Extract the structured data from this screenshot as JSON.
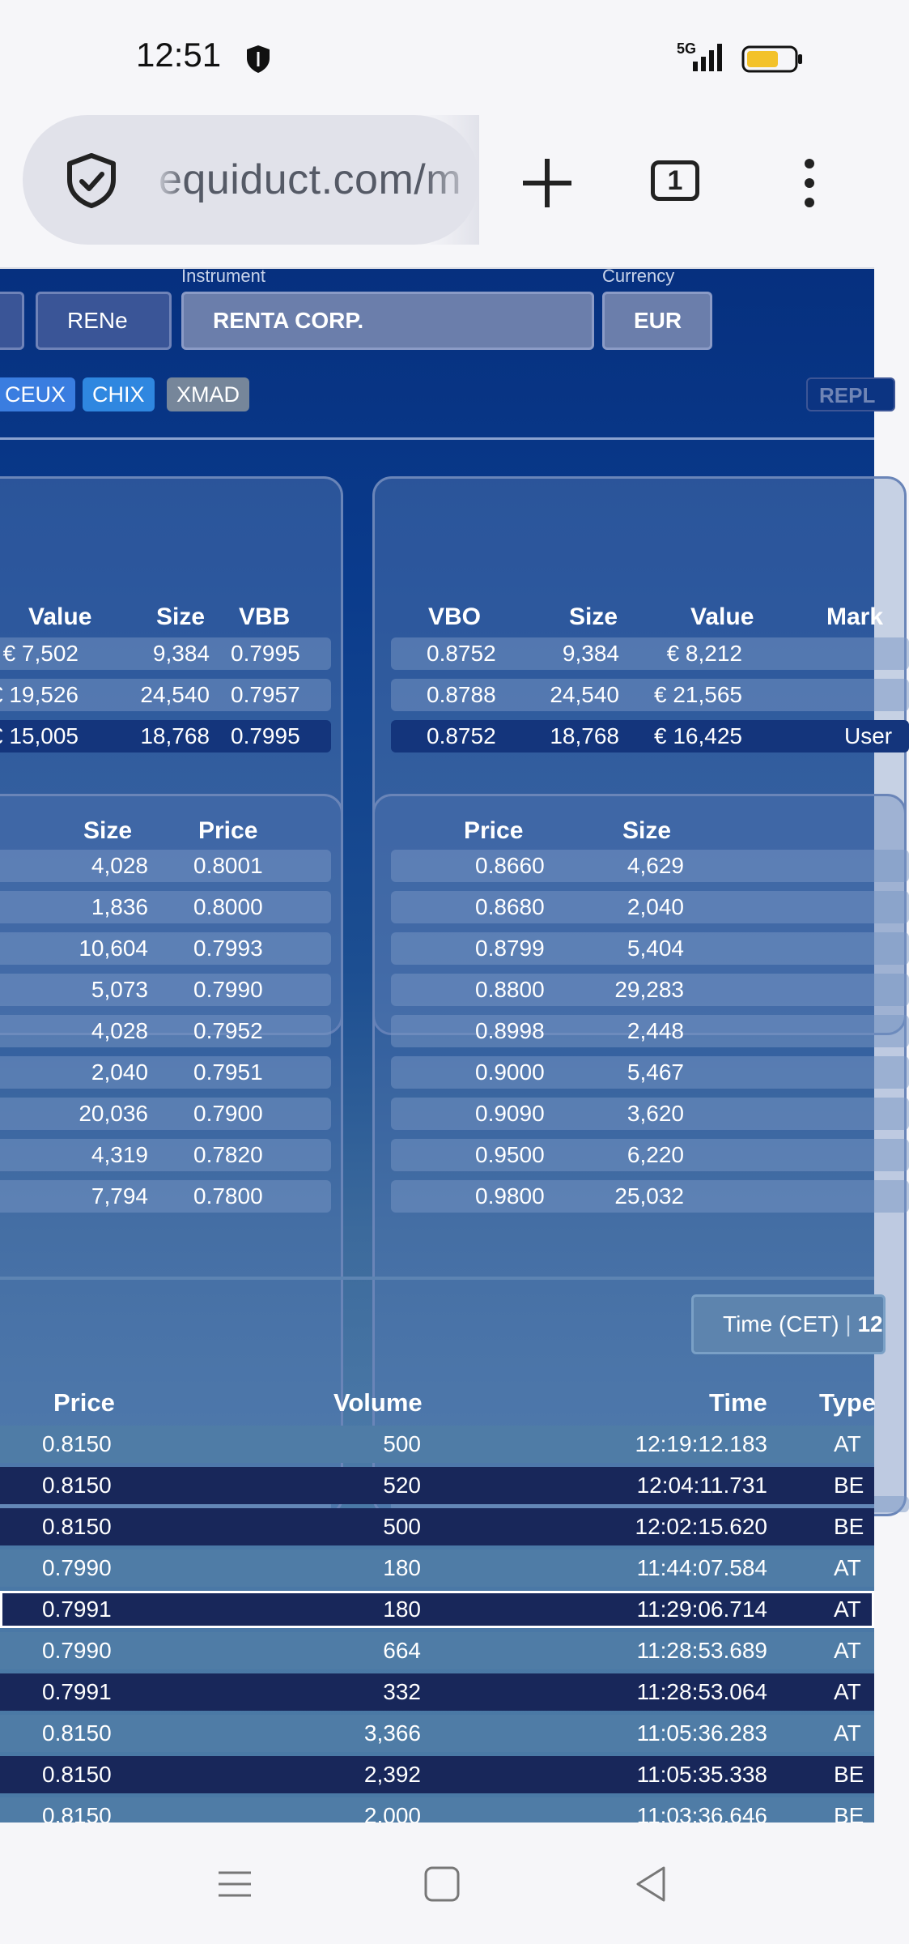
{
  "status_bar": {
    "time": "12:51",
    "network": "5G"
  },
  "browser": {
    "url": "equiduct.com/m",
    "tab_count": "1"
  },
  "instrument_bar": {
    "instrument_label": "Instrument",
    "currency_label": "Currency",
    "symbol": "RENe",
    "instrument": "RENTA CORP.",
    "currency": "EUR"
  },
  "venue_tags": [
    {
      "label": "CEUX",
      "color": "#3a7de0"
    },
    {
      "label": "CHIX",
      "color": "#2f87e0"
    },
    {
      "label": "XMAD",
      "color": "#76869a"
    }
  ],
  "repl_button": "REPL",
  "vbb_panel": {
    "headers": [
      "Value",
      "Size",
      "VBB"
    ],
    "rows": [
      {
        "value": "€ 7,502",
        "size": "9,384",
        "vbb": "0.7995"
      },
      {
        "value": "€ 19,526",
        "size": "24,540",
        "vbb": "0.7957"
      },
      {
        "value": "€ 15,005",
        "size": "18,768",
        "vbb": "0.7995"
      }
    ]
  },
  "vbo_panel": {
    "headers": [
      "VBO",
      "Size",
      "Value",
      "Mark"
    ],
    "rows": [
      {
        "vbo": "0.8752",
        "size": "9,384",
        "value": "€ 8,212",
        "mark": ""
      },
      {
        "vbo": "0.8788",
        "size": "24,540",
        "value": "€ 21,565",
        "mark": ""
      },
      {
        "vbo": "0.8752",
        "size": "18,768",
        "value": "€ 16,425",
        "mark": "User"
      }
    ]
  },
  "bid_book": {
    "headers": [
      "Size",
      "Price"
    ],
    "rows": [
      {
        "size": "4,028",
        "price": "0.8001"
      },
      {
        "size": "1,836",
        "price": "0.8000"
      },
      {
        "size": "10,604",
        "price": "0.7993"
      },
      {
        "size": "5,073",
        "price": "0.7990"
      },
      {
        "size": "4,028",
        "price": "0.7952"
      },
      {
        "size": "2,040",
        "price": "0.7951"
      },
      {
        "size": "20,036",
        "price": "0.7900"
      },
      {
        "size": "4,319",
        "price": "0.7820"
      },
      {
        "size": "7,794",
        "price": "0.7800"
      }
    ]
  },
  "ask_book": {
    "headers": [
      "Price",
      "Size"
    ],
    "rows": [
      {
        "price": "0.8660",
        "size": "4,629"
      },
      {
        "price": "0.8680",
        "size": "2,040"
      },
      {
        "price": "0.8799",
        "size": "5,404"
      },
      {
        "price": "0.8800",
        "size": "29,283"
      },
      {
        "price": "0.8998",
        "size": "2,448"
      },
      {
        "price": "0.9000",
        "size": "5,467"
      },
      {
        "price": "0.9090",
        "size": "3,620"
      },
      {
        "price": "0.9500",
        "size": "6,220"
      },
      {
        "price": "0.9800",
        "size": "25,032"
      }
    ]
  },
  "trades": {
    "time_label": "Time (CET)",
    "time_value": "12",
    "headers": [
      "Price",
      "Volume",
      "Time",
      "Type"
    ],
    "rows": [
      {
        "price": "0.8150",
        "volume": "500",
        "time": "12:19:12.183",
        "type": "AT"
      },
      {
        "price": "0.8150",
        "volume": "520",
        "time": "12:04:11.731",
        "type": "BE"
      },
      {
        "price": "0.8150",
        "volume": "500",
        "time": "12:02:15.620",
        "type": "BE"
      },
      {
        "price": "0.7990",
        "volume": "180",
        "time": "11:44:07.584",
        "type": "AT"
      },
      {
        "price": "0.7991",
        "volume": "180",
        "time": "11:29:06.714",
        "type": "AT"
      },
      {
        "price": "0.7990",
        "volume": "664",
        "time": "11:28:53.689",
        "type": "AT"
      },
      {
        "price": "0.7991",
        "volume": "332",
        "time": "11:28:53.064",
        "type": "AT"
      },
      {
        "price": "0.8150",
        "volume": "3,366",
        "time": "11:05:36.283",
        "type": "AT"
      },
      {
        "price": "0.8150",
        "volume": "2,392",
        "time": "11:05:35.338",
        "type": "BE"
      },
      {
        "price": "0.8150",
        "volume": "2,000",
        "time": "11:03:36.646",
        "type": "BE"
      }
    ]
  },
  "icons": [
    "shield-icon",
    "signal-icon",
    "battery-icon",
    "security-check-icon",
    "plus-icon",
    "tab-switcher-icon",
    "more-vert-icon",
    "menu-icon",
    "home-icon",
    "back-icon"
  ]
}
